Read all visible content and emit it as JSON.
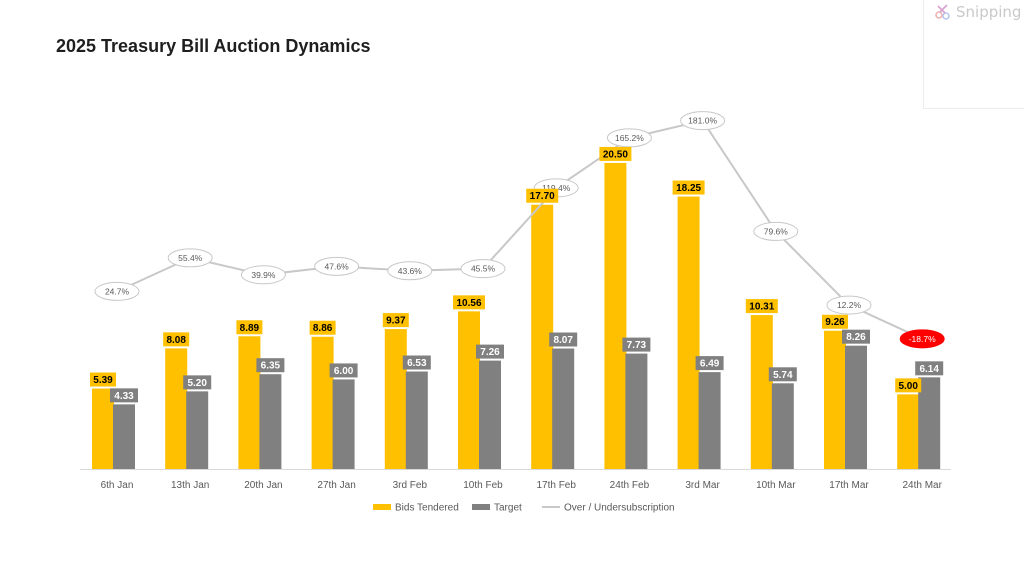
{
  "overlay": {
    "brand_label": "Snipping",
    "brand_icon": "scissors-icon"
  },
  "colors": {
    "bids": "#FFC000",
    "target": "#808080",
    "line": "#C8C8C8",
    "negative": "#FF0000"
  },
  "chart_data": {
    "type": "bar",
    "title": "2025 Treasury Bill Auction Dynamics",
    "xlabel": "",
    "ylabel": "",
    "categories": [
      "6th Jan",
      "13th Jan",
      "20th Jan",
      "27th Jan",
      "3rd Feb",
      "10th Feb",
      "17th Feb",
      "24th Feb",
      "3rd Mar",
      "10th Mar",
      "17th Mar",
      "24th Mar"
    ],
    "series": [
      {
        "name": "Bids Tendered",
        "type": "bar",
        "color": "#FFC000",
        "values": [
          5.39,
          8.08,
          8.89,
          8.86,
          9.37,
          10.56,
          17.7,
          20.5,
          18.25,
          10.31,
          9.26,
          5.0
        ],
        "labels": [
          "5.39",
          "8.08",
          "8.89",
          "8.86",
          "9.37",
          "10.56",
          "17.70",
          "20.50",
          "18.25",
          "10.31",
          "9.26",
          "5.00"
        ]
      },
      {
        "name": "Target",
        "type": "bar",
        "color": "#808080",
        "values": [
          4.33,
          5.2,
          6.35,
          6.0,
          6.53,
          7.26,
          8.07,
          7.73,
          6.49,
          5.74,
          8.26,
          6.14
        ],
        "labels": [
          "4.33",
          "5.20",
          "6.35",
          "6.00",
          "6.53",
          "7.26",
          "8.07",
          "7.73",
          "6.49",
          "5.74",
          "8.26",
          "6.14"
        ]
      },
      {
        "name": "Over / Undersubscription",
        "type": "line",
        "color": "#C8C8C8",
        "values": [
          24.7,
          55.4,
          39.9,
          47.6,
          43.6,
          45.5,
          119.4,
          165.2,
          181.0,
          79.6,
          12.2,
          -18.7
        ],
        "labels": [
          "24.7%",
          "55.4%",
          "39.9%",
          "47.6%",
          "43.6%",
          "45.5%",
          "119.4%",
          "165.2%",
          "181.0%",
          "79.6%",
          "12.2%",
          "-18.7%"
        ]
      }
    ],
    "ylim_bars": [
      0,
      25
    ],
    "ylim_line": [
      -300,
      240
    ],
    "grid": false,
    "legend": "bottom-center"
  }
}
